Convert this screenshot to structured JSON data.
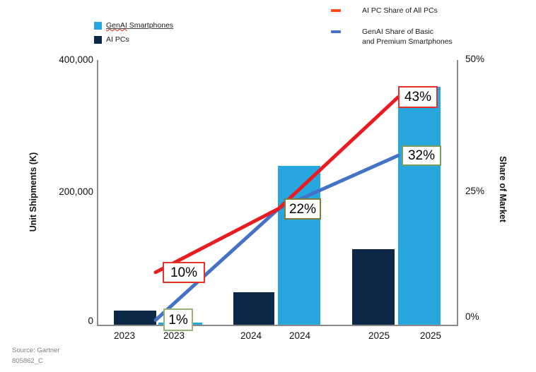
{
  "legend_bars": [
    {
      "word1": "GenAI",
      "word2": "Smartphones",
      "color": "#28A7DF"
    },
    {
      "label": "AI PCs",
      "color": "#0D2847"
    }
  ],
  "legend_lines": [
    {
      "label": "AI PC Share of All PCs",
      "swatch_color": "#F84E13"
    },
    {
      "line1": "GenAI Share of Basic",
      "line2": "and Premium Smartphones",
      "swatch_color": "#4472C4"
    }
  ],
  "left_axis": {
    "title": "Unit Shipments (K)",
    "ticks": [
      "400,000",
      "200,000",
      "0"
    ]
  },
  "right_axis": {
    "title": "Share of Market",
    "ticks": [
      "50%",
      "25%",
      "0%"
    ]
  },
  "x_labels": [
    "2023",
    "2023",
    "2024",
    "2024",
    "2025",
    "2025"
  ],
  "annotations": [
    {
      "text": "10%",
      "border_color": "#E63229",
      "series": "AI PC Share of All PCs",
      "year": "2023"
    },
    {
      "text": "1%",
      "border_color": "#92B478",
      "series": "GenAI Share of Basic and Premium Smartphones",
      "year": "2023"
    },
    {
      "text": "22%",
      "border_color": "#7E7F3B",
      "series": "GenAI Share of Basic and Premium Smartphones",
      "year": "2024"
    },
    {
      "text": "43%",
      "border_color": "#E63229",
      "series": "AI PC Share of All PCs",
      "year": "2025"
    },
    {
      "text": "32%",
      "border_color": "#7E9D5B",
      "series": "GenAI Share of Basic and Premium Smartphones",
      "year": "2025"
    }
  ],
  "footer": {
    "source": "Source: Gartner",
    "doc_id": "805862_C"
  },
  "chart_data": {
    "type": "bar",
    "subtype": "combo-bar-line-dual-axis",
    "categories": [
      "2023",
      "2024",
      "2025"
    ],
    "bar_series": [
      {
        "name": "AI PCs",
        "color": "#0D2847",
        "values": [
          22000,
          50000,
          115000
        ]
      },
      {
        "name": "GenAI Smartphones",
        "color": "#28A7DF",
        "values": [
          4000,
          240000,
          360000
        ]
      }
    ],
    "line_series": [
      {
        "name": "GenAI Share of Basic and Premium Smartphones",
        "color": "#4472C4",
        "axis": "right",
        "values_pct": [
          1,
          22,
          32
        ]
      },
      {
        "name": "AI PC Share of All PCs",
        "color": "#EB1B22",
        "axis": "right",
        "values_pct": [
          10,
          22,
          43
        ]
      }
    ],
    "ylabel_left": "Unit Shipments (K)",
    "ylim_left": [
      0,
      400000
    ],
    "yticks_left": [
      0,
      200000,
      400000
    ],
    "ylabel_right": "Share of Market",
    "ylim_right_pct": [
      0,
      50
    ],
    "yticks_right_pct": [
      0,
      25,
      50
    ],
    "grid": false,
    "legend_position": "top"
  }
}
